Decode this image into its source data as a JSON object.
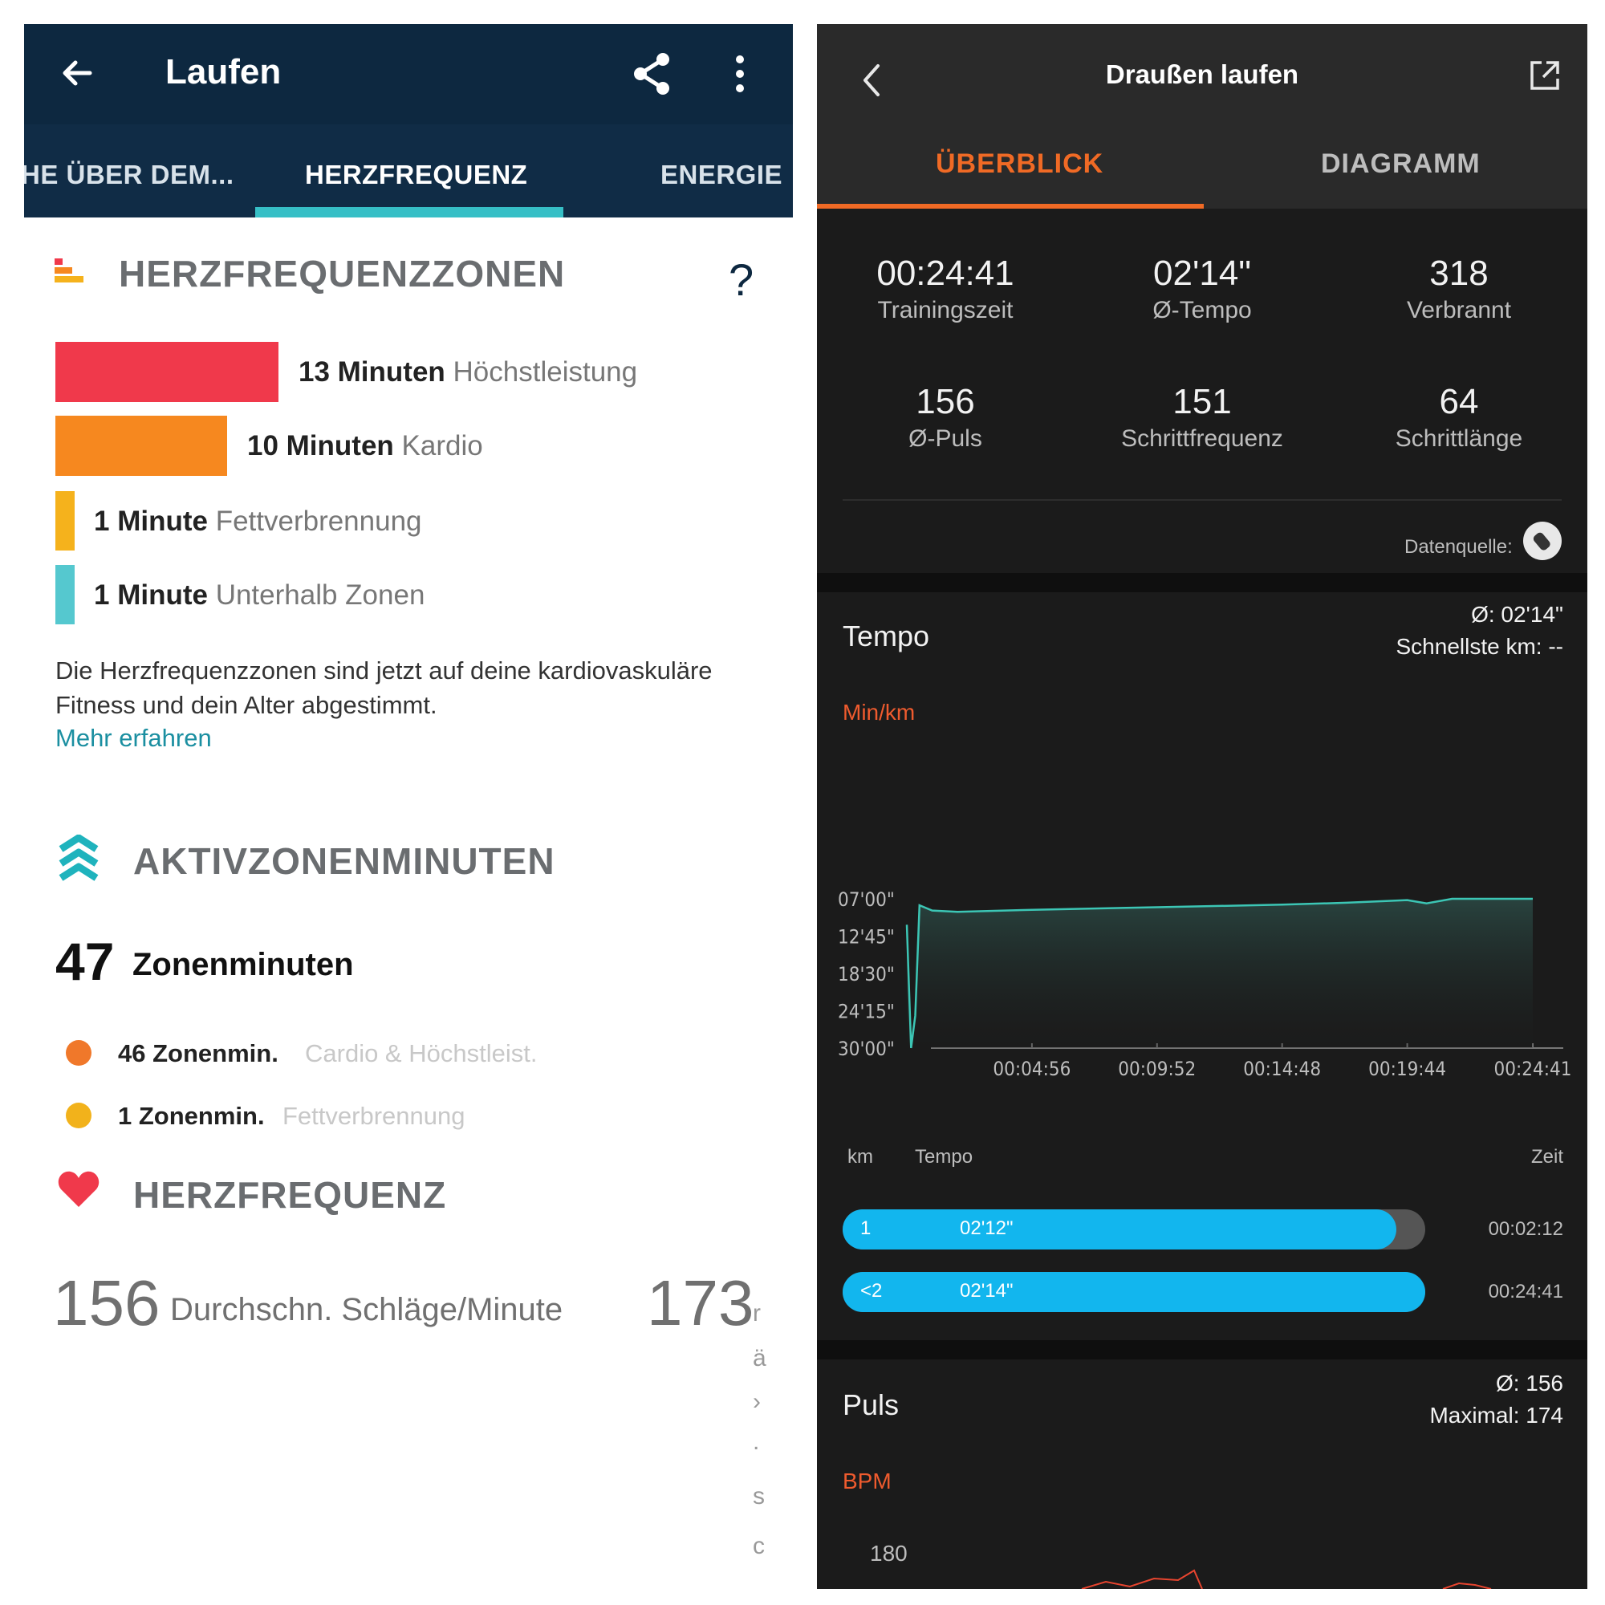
{
  "left": {
    "header": {
      "title": "Laufen"
    },
    "tabs": [
      "HE ÜBER DEM...",
      "HERZFREQUENZ",
      "ENERGIE"
    ],
    "zones_section": {
      "title": "HERZFREQUENZZONEN",
      "help": "?",
      "zones": [
        {
          "amount": "13 Minuten",
          "name": "Höchstleistung",
          "minutes": 13,
          "color": "#f0394b"
        },
        {
          "amount": "10 Minuten",
          "name": "Kardio",
          "minutes": 10,
          "color": "#f6881f"
        },
        {
          "amount": "1 Minute",
          "name": "Fettverbrennung",
          "minutes": 1,
          "color": "#f5b21c"
        },
        {
          "amount": "1 Minute",
          "name": "Unterhalb Zonen",
          "minutes": 1,
          "color": "#55c8cf"
        }
      ],
      "note": "Die Herzfrequenzzonen sind jetzt auf deine kardiovaskuläre Fitness und dein Alter abgestimmt.",
      "link": "Mehr erfahren"
    },
    "azm_section": {
      "title": "AKTIVZONENMINUTEN",
      "total": "47",
      "total_label": "Zonenminuten",
      "items": [
        {
          "value": "46 Zonenmin.",
          "desc": "Cardio & Höchstleist.",
          "color": "#f0782a"
        },
        {
          "value": "1 Zonenmin.",
          "desc": "Fettverbrennung",
          "color": "#f2b21b"
        }
      ]
    },
    "hr_section": {
      "title": "HERZFREQUENZ",
      "avg": "156",
      "avg_label": "Durchschn. Schläge/Minute",
      "max": "173"
    }
  },
  "right": {
    "header": {
      "title": "Draußen laufen"
    },
    "tabs": {
      "active": "ÜBERBLICK",
      "inactive": "DIAGRAMM"
    },
    "stats": [
      {
        "value": "00:24:41",
        "label": "Trainingszeit"
      },
      {
        "value": "02'14\"",
        "label": "Ø-Tempo"
      },
      {
        "value": "318",
        "label": "Verbrannt"
      },
      {
        "value": "156",
        "label": "Ø-Puls"
      },
      {
        "value": "151",
        "label": "Schrittfrequenz"
      },
      {
        "value": "64",
        "label": "Schrittlänge"
      }
    ],
    "source_label": "Datenquelle:",
    "tempo": {
      "title": "Tempo",
      "avg": "Ø: 02'14\"",
      "fastest": "Schnellste km: --",
      "unit": "Min/km"
    },
    "splits": {
      "headers": {
        "km": "km",
        "pace": "Tempo",
        "time": "Zeit"
      },
      "rows": [
        {
          "km": "1",
          "pace": "02'12\"",
          "time": "00:02:12",
          "fill": 0.95
        },
        {
          "km": "<2",
          "pace": "02'14\"",
          "time": "00:24:41",
          "fill": 1.0
        }
      ]
    },
    "puls": {
      "title": "Puls",
      "avg": "Ø: 156",
      "max": "Maximal: 174",
      "unit": "BPM",
      "tick": "180"
    }
  },
  "chart_data": {
    "type": "area",
    "xlabel": "",
    "ylabel": "Min/km",
    "x_ticks": [
      "00:04:56",
      "00:09:52",
      "00:14:48",
      "00:19:44",
      "00:24:41"
    ],
    "y_ticks": [
      "07'00\"",
      "12'45\"",
      "18'30\"",
      "24'15\"",
      "30'00\""
    ],
    "y_min_per_km_ticks": [
      7.0,
      12.75,
      18.5,
      24.25,
      30.0
    ],
    "y_inverted": true,
    "series": [
      {
        "x_seconds": [
          0,
          10,
          20,
          30,
          60,
          120,
          296,
          592,
          888,
          1040,
          1184,
          1230,
          1290,
          1481
        ],
        "pace_min_per_km": [
          11.0,
          30.0,
          25.0,
          8.0,
          8.8,
          9.0,
          8.7,
          8.3,
          7.9,
          7.6,
          7.2,
          7.7,
          7.0,
          7.0
        ]
      }
    ]
  }
}
